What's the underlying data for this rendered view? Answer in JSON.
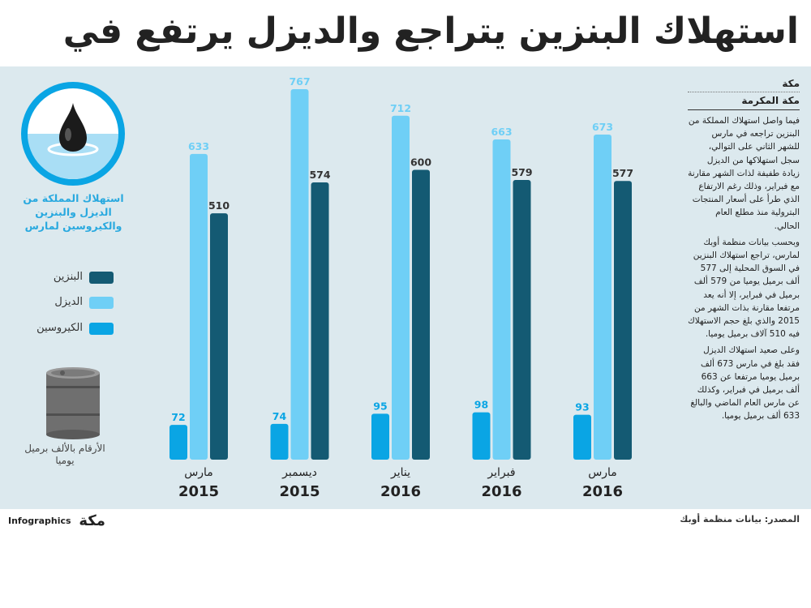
{
  "title": "استهلاك البنزين يتراجع والديزل يرتفع في مارس",
  "colors": {
    "gasoline": "#145a73",
    "diesel": "#6fcff6",
    "kerosene": "#0aa5e4",
    "panel": "#dce9ee"
  },
  "chart_data": {
    "type": "bar",
    "title": "استهلاك المملكة من الديزل والبنزين والكيروسين لمارس",
    "unit_note": "الأرقام بالألف برميل يوميا",
    "categories": [
      {
        "month": "مارس",
        "year": "2015"
      },
      {
        "month": "ديسمبر",
        "year": "2015"
      },
      {
        "month": "يناير",
        "year": "2016"
      },
      {
        "month": "فبراير",
        "year": "2016"
      },
      {
        "month": "مارس",
        "year": "2016"
      }
    ],
    "series": [
      {
        "name": "الكيروسين",
        "key": "kerosene",
        "values": [
          72,
          74,
          95,
          98,
          93
        ]
      },
      {
        "name": "الديزل",
        "key": "diesel",
        "values": [
          633,
          767,
          712,
          663,
          673
        ]
      },
      {
        "name": "البنزين",
        "key": "gasoline",
        "values": [
          510,
          574,
          600,
          579,
          577
        ]
      }
    ],
    "legend": [
      "البنزين",
      "الديزل",
      "الكيروسين"
    ],
    "ylim": [
      0,
      767
    ]
  },
  "sidebar": {
    "city": "مكة",
    "region": "مكة المكرمة",
    "paragraphs": [
      "فيما واصل استهلاك المملكة من البنزين تراجعه في مارس للشهر الثاني على التوالي، سجل استهلاكها من الديزل زيادة طفيفة لذات الشهر مقارنة مع فبراير، وذلك رغم الارتفاع الذي طرأ على أسعار المنتجات البترولية منذ مطلع العام الحالي.",
      "وبحسب بيانات منظمة أوبك لمارس، تراجع استهلاك البنزين في السوق المحلية إلى 577 ألف برميل يوميا من 579 ألف برميل في فبراير، إلا أنه يعد مرتفعا مقارنة بذات الشهر من 2015 والذي بلغ حجم الاستهلاك فيه 510 آلاف برميل يوميا.",
      "وعلى صعيد استهلاك الديزل فقد بلغ في مارس 673 ألف برميل يوميا مرتفعا عن 663 ألف برميل في فبراير، وكذلك عن مارس العام الماضي والبالغ 633 ألف برميل يوميا."
    ]
  },
  "footer": {
    "source": "المصدر: بيانات منظمة أوبك",
    "brand": "Infographics",
    "brand_arabic": "مكة"
  }
}
